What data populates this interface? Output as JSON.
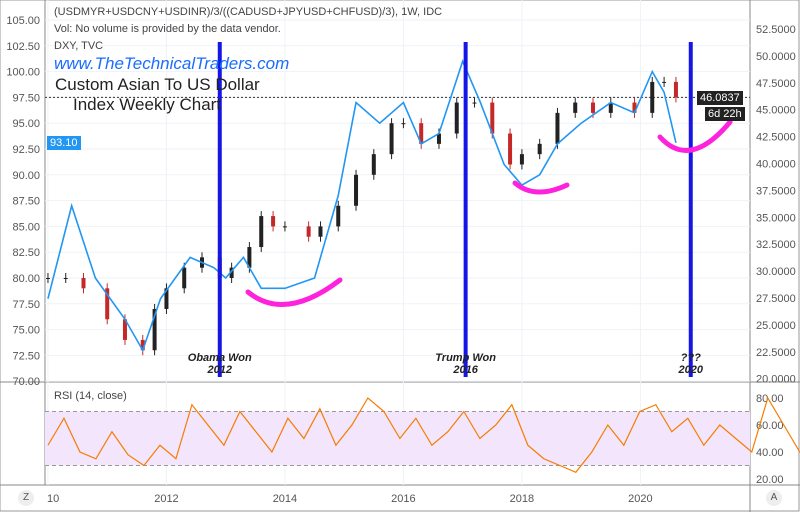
{
  "header": {
    "symbol": "(USDMYR+USDCNY+USDINR)/3/((CADUSD+JPYUSD+CHFUSD)/3), 1W, IDC",
    "volume_note": "Vol: No volume is provided by the data vendor.",
    "overlay": "DXY, TVC"
  },
  "watermark": "www.TheTechnicalTraders.com",
  "title_line1": "Custom Asian To US Dollar",
  "title_line2": "Index Weekly Chart",
  "badges": {
    "left_price": "93.10",
    "right_price": "46.0837",
    "countdown": "6d 22h"
  },
  "annotations": [
    {
      "line1": "Obama Won",
      "line2": "2012",
      "year": 2012.9
    },
    {
      "line1": "Trump Won",
      "line2": "2016",
      "year": 2017.05
    },
    {
      "line1": "???",
      "line2": "2020",
      "year": 2020.85
    }
  ],
  "buttons": {
    "left": "Z",
    "right": "A"
  },
  "colors": {
    "candle_up": "#222222",
    "candle_down": "#c62828",
    "dxy": "#2196f3",
    "rsi": "#f57c00",
    "vline": "#1515e6",
    "arc": "#ff22dd",
    "rsi_band": "#f3e5fb"
  },
  "chart_data": {
    "type": "line",
    "title": "Custom Asian To US Dollar Index Weekly Chart",
    "left_axis": {
      "ticks": [
        "105.00",
        "102.50",
        "100.00",
        "97.50",
        "95.00",
        "92.50",
        "90.00",
        "87.50",
        "85.00",
        "82.50",
        "80.00",
        "77.50",
        "75.00",
        "72.50",
        "70.00"
      ],
      "range": [
        70,
        105
      ]
    },
    "right_axis": {
      "ticks": [
        "52.5000",
        "50.0000",
        "47.5000",
        "45.0000",
        "42.5000",
        "40.0000",
        "37.5000",
        "35.0000",
        "32.5000",
        "30.0000",
        "27.5000",
        "25.0000",
        "22.5000",
        "20.0000"
      ],
      "range": [
        20,
        52.5
      ]
    },
    "x_axis": {
      "ticks": [
        "10",
        "2012",
        "2014",
        "2016",
        "2018",
        "2020"
      ],
      "tick_years": [
        2010,
        2012,
        2014,
        2016,
        2018,
        2020
      ],
      "range": [
        2009.95,
        2021.85
      ]
    },
    "series": [
      {
        "name": "Custom Index (candles)",
        "x": [
          2010.0,
          2010.3,
          2010.6,
          2011.0,
          2011.3,
          2011.6,
          2011.8,
          2012.0,
          2012.3,
          2012.6,
          2012.9,
          2013.1,
          2013.4,
          2013.6,
          2013.8,
          2014.0,
          2014.4,
          2014.6,
          2014.9,
          2015.2,
          2015.5,
          2015.8,
          2016.0,
          2016.3,
          2016.6,
          2016.9,
          2017.2,
          2017.5,
          2017.8,
          2018.0,
          2018.3,
          2018.6,
          2018.9,
          2019.2,
          2019.5,
          2019.9,
          2020.2,
          2020.4,
          2020.6
        ],
        "values": [
          80,
          80,
          79,
          76,
          74,
          73,
          77,
          79,
          81,
          82,
          80,
          81,
          83,
          86,
          85,
          85,
          84,
          85,
          87,
          90,
          92,
          95,
          95,
          93,
          94,
          97,
          97,
          94,
          91,
          92,
          93,
          96,
          97,
          96,
          97,
          96,
          99,
          99,
          97.5
        ]
      },
      {
        "name": "DXY, TVC",
        "x": [
          2010.0,
          2010.4,
          2010.8,
          2011.3,
          2011.6,
          2011.9,
          2012.4,
          2012.8,
          2013.0,
          2013.3,
          2013.6,
          2014.0,
          2014.5,
          2014.9,
          2015.2,
          2015.6,
          2016.0,
          2016.3,
          2016.6,
          2017.0,
          2017.3,
          2017.7,
          2018.0,
          2018.3,
          2018.6,
          2019.0,
          2019.5,
          2019.9,
          2020.2,
          2020.4,
          2020.6
        ],
        "values": [
          78,
          87,
          80,
          76,
          73,
          78,
          82,
          81,
          80,
          82,
          79,
          79,
          80,
          88,
          97,
          95,
          97,
          93,
          94,
          101,
          97,
          91,
          89,
          90,
          93,
          95,
          97,
          96,
          100,
          98,
          93.1
        ]
      }
    ],
    "rsi": {
      "label": "RSI (14, close)",
      "ticks": [
        "80.00",
        "60.00",
        "40.00",
        "20.00"
      ],
      "band": [
        30,
        70
      ],
      "x_start": 2010.0,
      "x_step": 0.27,
      "values": [
        45,
        65,
        40,
        35,
        55,
        38,
        30,
        45,
        35,
        75,
        60,
        45,
        70,
        55,
        40,
        65,
        50,
        72,
        45,
        60,
        80,
        70,
        50,
        65,
        45,
        55,
        70,
        50,
        60,
        75,
        45,
        35,
        30,
        25,
        40,
        60,
        45,
        70,
        75,
        55,
        65,
        45,
        60,
        50,
        40,
        80,
        60,
        40,
        38
      ]
    }
  }
}
